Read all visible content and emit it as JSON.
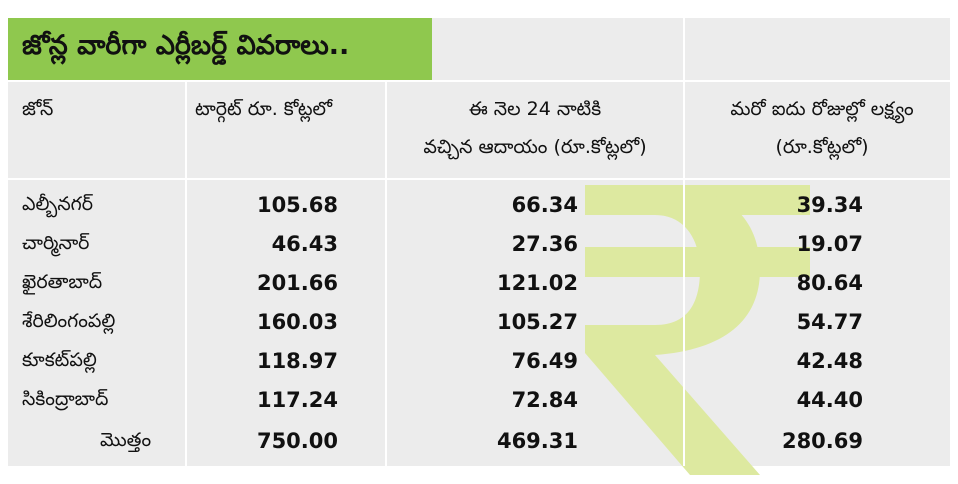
{
  "title": "జోన్ల వారీగా ఎర్లీబర్డ్ వివరాలు..",
  "headers": [
    "జోన్",
    "టార్గెట్ రూ. కోట్లలో",
    "ఈ నెల 24 నాటికి వచ్చిన ఆదాయం (రూ.కోట్లలో)",
    "మరో ఐదు రోజుల్లో లక్ష్యం (రూ.కోట్లలో)"
  ],
  "header_lines": {
    "col2": [
      "ఈ నెల 24 నాటికి",
      "వచ్చిన ఆదాయం (రూ.కోట్లలో)"
    ],
    "col3": [
      "మరో ఐదు రోజుల్లో లక్ష్యం",
      "(రూ.కోట్లలో)"
    ]
  },
  "rows": [
    {
      "zone": "ఎల్బీనగర్",
      "target": "105.68",
      "received": "66.34",
      "remaining": "39.34"
    },
    {
      "zone": "చార్మినార్",
      "target": "46.43",
      "received": "27.36",
      "remaining": "19.07"
    },
    {
      "zone": "ఖైరతాబాద్",
      "target": "201.66",
      "received": "121.02",
      "remaining": "80.64"
    },
    {
      "zone": "శేరిలింగంపల్లి",
      "target": "160.03",
      "received": "105.27",
      "remaining": "54.77"
    },
    {
      "zone": "కూకట్‌పల్లి",
      "target": "118.97",
      "received": "76.49",
      "remaining": "42.48"
    },
    {
      "zone": "సికింద్రాబాద్",
      "target": "117.24",
      "received": "72.84",
      "remaining": "44.40"
    }
  ],
  "total": {
    "label": "మొత్తం",
    "target": "750.00",
    "received": "469.31",
    "remaining": "280.69"
  },
  "icons": {
    "watermark": "rupee-icon"
  },
  "colors": {
    "title_bg": "#8fc84e",
    "table_bg": "#ececec",
    "watermark": "#dde9a0"
  }
}
